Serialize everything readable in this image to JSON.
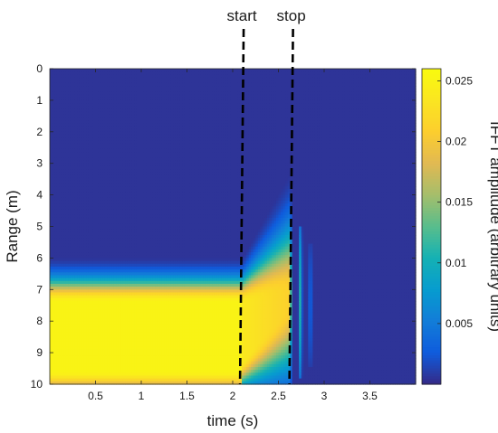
{
  "chart_data": {
    "type": "heatmap",
    "xlabel": "time (s)",
    "ylabel": "Range (m)",
    "colorbar_label": "IFFT amplitude (arbitrary units)",
    "colormap": "parula",
    "xlim": [
      0,
      4.0
    ],
    "ylim": [
      0,
      10
    ],
    "y_reversed": true,
    "x_ticks": [
      0.5,
      1,
      1.5,
      2,
      2.5,
      3,
      3.5
    ],
    "x_tick_labels": [
      "0.5",
      "1",
      "1.5",
      "2",
      "2.5",
      "3",
      "3.5"
    ],
    "y_ticks": [
      0,
      1,
      2,
      3,
      4,
      5,
      6,
      7,
      8,
      9,
      10
    ],
    "y_tick_labels": [
      "0",
      "1",
      "2",
      "3",
      "4",
      "5",
      "6",
      "7",
      "8",
      "9",
      "10"
    ],
    "clim": [
      0,
      0.026
    ],
    "colorbar_ticks": [
      0.005,
      0.01,
      0.015,
      0.02,
      0.025
    ],
    "colorbar_tick_labels": [
      "0.005",
      "0.01",
      "0.015",
      "0.02",
      "0.025"
    ],
    "markers": [
      {
        "label": "start",
        "x": 2.08
      },
      {
        "label": "stop",
        "x": 2.62
      }
    ],
    "intensity_model": {
      "baseline_amplitude": 0.0005,
      "band_before_start": {
        "t_from": 0,
        "t_to": 2.08,
        "range_center": 8.5,
        "range_halfwidth": 1.1,
        "range_spread": 0.5,
        "peak_amplitude": 0.025
      },
      "band_between_markers": {
        "t_from": 2.08,
        "t_to": 2.62,
        "range_center_at_start": 8.4,
        "range_center_at_stop": 7.3,
        "peak_amplitude": 0.024
      },
      "residual_stripes": [
        {
          "t": 2.74,
          "range_from": 5.0,
          "range_to": 9.8,
          "peak_amplitude": 0.011
        },
        {
          "t": 2.85,
          "range_from": 5.5,
          "range_to": 9.5,
          "peak_amplitude": 0.004
        }
      ]
    }
  }
}
